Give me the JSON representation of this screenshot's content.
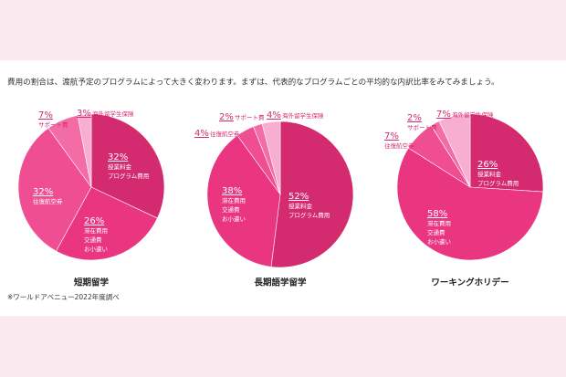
{
  "intro": "費用の割合は、渡航予定のプログラムによって大きく変わります。まずは、代表的なプログラムごとの平均的な内訳比率をみてみましょう。",
  "note": "※ワールドアベニュー2022年度調べ",
  "chart_data": [
    {
      "type": "pie",
      "title": "短期留学",
      "categories": [
        [
          "授業料金",
          "プログラム費用"
        ],
        [
          "滞在費用",
          "交通費",
          "お小遣い"
        ],
        [
          "往復航空券"
        ],
        [
          "サポート費"
        ],
        [
          "海外留学生保険"
        ]
      ],
      "values": [
        32,
        26,
        32,
        7,
        3
      ],
      "value_labels": [
        "32%",
        "26%",
        "32%",
        "7%",
        "3%"
      ],
      "colors": [
        "#d42a6f",
        "#ea3580",
        "#f04e92",
        "#f46ca6",
        "#f8aed0"
      ]
    },
    {
      "type": "pie",
      "title": "長期語学留学",
      "categories": [
        [
          "授業料金",
          "プログラム費用"
        ],
        [
          "滞在費用",
          "交通費",
          "お小遣い"
        ],
        [
          "往復航空券"
        ],
        [
          "サポート費"
        ],
        [
          "海外留学生保険"
        ]
      ],
      "values": [
        52,
        38,
        4,
        2,
        4
      ],
      "value_labels": [
        "52%",
        "38%",
        "4%",
        "2%",
        "4%"
      ],
      "colors": [
        "#d42a6f",
        "#ea3580",
        "#f04e92",
        "#f46ca6",
        "#f8aed0"
      ]
    },
    {
      "type": "pie",
      "title": "ワーキングホリデー",
      "categories": [
        [
          "授業料金",
          "プログラム費用"
        ],
        [
          "滞在費用",
          "交通費",
          "お小遣い"
        ],
        [
          "往復航空券"
        ],
        [
          "サポート費"
        ],
        [
          "海外留学生保険"
        ]
      ],
      "values": [
        26,
        58,
        7,
        2,
        7
      ],
      "value_labels": [
        "26%",
        "58%",
        "7%",
        "2%",
        "7%"
      ],
      "colors": [
        "#d42a6f",
        "#ea3580",
        "#f04e92",
        "#f46ca6",
        "#f8aed0"
      ]
    }
  ]
}
